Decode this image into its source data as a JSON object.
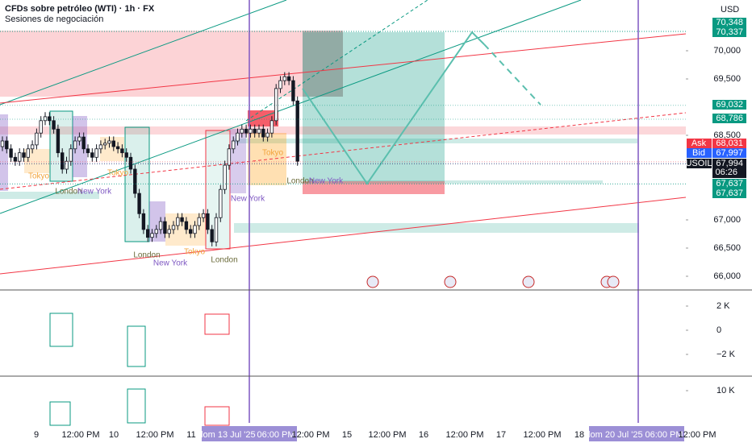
{
  "chart_data": {
    "type": "candlestick",
    "title": "CFDs sobre petróleo (WTI) · 1h · FX",
    "subtitle": "Sesiones de negociación",
    "currency": "USD",
    "up_color": "#ffffff",
    "down_color": "#131722",
    "open": [
      68.3,
      68.4,
      68.26,
      68.11,
      68.04,
      68.19,
      68.11,
      68.26,
      68.33,
      68.54,
      68.76,
      68.83,
      68.76,
      68.61,
      68.19,
      67.9,
      68.04,
      68.26,
      68.4,
      68.47,
      68.26,
      68.19,
      68.11,
      68.26,
      68.33,
      68.36,
      68.4,
      68.3,
      68.26,
      68.19,
      68.11,
      67.9,
      67.47,
      67.11,
      66.83,
      66.69,
      66.76,
      66.83,
      66.97,
      66.76,
      66.83,
      66.9,
      67.04,
      66.97,
      66.83,
      66.76,
      66.9,
      67.04,
      67.11,
      66.83,
      66.61,
      67.04,
      67.54,
      67.97,
      68.26,
      68.4,
      68.54,
      68.61,
      68.54,
      68.61,
      68.54,
      68.61,
      68.47,
      68.54,
      68.76,
      69.33,
      69.47,
      69.54,
      69.47,
      69.11
    ],
    "high": [
      68.48,
      68.48,
      68.34,
      68.19,
      68.27,
      68.27,
      68.34,
      68.41,
      68.62,
      68.84,
      68.91,
      68.91,
      68.84,
      68.69,
      68.27,
      68.12,
      68.34,
      68.48,
      68.55,
      68.55,
      68.34,
      68.27,
      68.34,
      68.41,
      68.44,
      68.48,
      68.48,
      68.38,
      68.34,
      68.27,
      68.19,
      67.98,
      67.55,
      67.19,
      66.91,
      66.84,
      66.91,
      67.05,
      67.05,
      66.91,
      66.98,
      67.12,
      67.12,
      67.05,
      66.91,
      66.98,
      67.12,
      67.19,
      67.19,
      66.91,
      67.12,
      67.62,
      68.05,
      68.34,
      68.48,
      68.62,
      68.69,
      68.69,
      68.69,
      68.69,
      68.69,
      68.69,
      68.62,
      68.84,
      69.41,
      69.55,
      69.62,
      69.62,
      69.55,
      69.19
    ],
    "low": [
      68.22,
      68.18,
      68.03,
      67.96,
      67.96,
      68.03,
      68.03,
      68.18,
      68.25,
      68.46,
      68.68,
      68.68,
      68.53,
      68.11,
      67.82,
      67.82,
      67.96,
      68.18,
      68.32,
      68.18,
      68.11,
      68.03,
      68.03,
      68.18,
      68.25,
      68.28,
      68.22,
      68.18,
      68.11,
      68.03,
      67.82,
      67.39,
      67.03,
      66.75,
      66.61,
      66.61,
      66.68,
      66.75,
      66.68,
      66.68,
      66.75,
      66.82,
      66.89,
      66.75,
      66.68,
      66.68,
      66.82,
      66.96,
      66.75,
      66.53,
      66.53,
      66.96,
      67.46,
      67.89,
      68.18,
      68.32,
      68.46,
      68.46,
      68.46,
      68.46,
      68.46,
      68.39,
      68.39,
      68.46,
      68.68,
      69.25,
      69.39,
      69.39,
      69.03,
      67.96
    ],
    "close": [
      68.4,
      68.26,
      68.11,
      68.04,
      68.19,
      68.11,
      68.26,
      68.33,
      68.54,
      68.76,
      68.83,
      68.76,
      68.61,
      68.19,
      67.9,
      68.04,
      68.26,
      68.4,
      68.47,
      68.26,
      68.19,
      68.11,
      68.26,
      68.33,
      68.36,
      68.4,
      68.3,
      68.26,
      68.19,
      68.11,
      67.9,
      67.47,
      67.11,
      66.83,
      66.69,
      66.76,
      66.83,
      66.97,
      66.76,
      66.83,
      66.9,
      67.04,
      66.97,
      66.83,
      66.76,
      66.9,
      67.04,
      67.11,
      66.83,
      66.61,
      67.04,
      67.54,
      67.97,
      68.26,
      68.4,
      68.54,
      68.61,
      68.54,
      68.61,
      68.54,
      68.61,
      68.47,
      68.54,
      68.76,
      69.33,
      69.47,
      69.54,
      69.47,
      69.11,
      68.04
    ],
    "ylim": [
      65.757,
      70.9
    ],
    "yticks": [
      {
        "value": 70.0,
        "label": "70,000"
      },
      {
        "value": 69.5,
        "label": "69,500"
      },
      {
        "value": 68.5,
        "label": "68,500"
      },
      {
        "value": 67.0,
        "label": "67,000"
      },
      {
        "value": 66.5,
        "label": "66,500"
      },
      {
        "value": 66.0,
        "label": "66,000"
      }
    ],
    "price_badges": [
      {
        "value": 70.348,
        "label": "70,348",
        "color": "#089981"
      },
      {
        "value": 70.337,
        "label": "70,337",
        "color": "#089981"
      },
      {
        "value": 69.032,
        "label": "69,032",
        "color": "#089981"
      },
      {
        "value": 68.786,
        "label": "68,786",
        "color": "#089981"
      },
      {
        "name": "Ask",
        "value": 68.031,
        "label": "68,031",
        "color": "#f23645"
      },
      {
        "name": "Bid",
        "value": 67.997,
        "label": "67,997",
        "color": "#2962ff"
      },
      {
        "name": "USOIL",
        "value": 67.994,
        "label": "67,994",
        "countdown": "06:26",
        "color": "#131722"
      },
      {
        "value": 67.637,
        "label": "67,637",
        "color": "#089981"
      },
      {
        "value": 67.637,
        "label": "67,637",
        "color": "#089981"
      }
    ],
    "session_labels": [
      "Tokyo",
      "London",
      "New York",
      "Tokyo",
      "London",
      "New York",
      "Tokyo",
      "London",
      "New York",
      "Tokyo",
      "London",
      "New York"
    ],
    "time_labels": [
      "9",
      "12:00 PM",
      "10",
      "12:00 PM",
      "11",
      "dom 13 Jul '25",
      "06:00 PM",
      "12:00 PM",
      "15",
      "12:00 PM",
      "16",
      "12:00 PM",
      "17",
      "12:00 PM",
      "18",
      "dom 20 Jul '25",
      "06:00 PM",
      "12:00 PM"
    ],
    "indicator_ticks": [
      {
        "value": 2000,
        "label": "2 K"
      },
      {
        "value": 0,
        "label": "0"
      },
      {
        "value": -2000,
        "label": "−2 K"
      }
    ],
    "volume_ticks": [
      {
        "value": 10000,
        "label": "10 K"
      }
    ]
  }
}
